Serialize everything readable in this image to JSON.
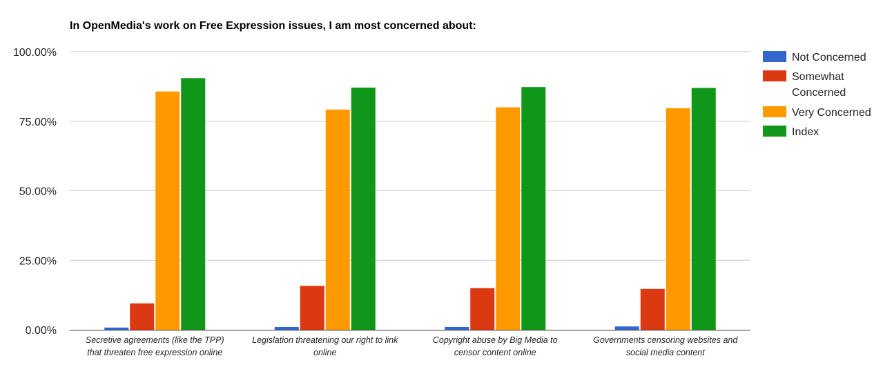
{
  "chart_data": {
    "type": "bar",
    "title": "In OpenMedia's work on Free Expression issues, I am most concerned about:",
    "xlabel": "",
    "ylabel": "",
    "ylim": [
      0,
      100
    ],
    "yticks": [
      "0.00%",
      "25.00%",
      "50.00%",
      "75.00%",
      "100.00%"
    ],
    "ytick_values": [
      0,
      25,
      50,
      75,
      100
    ],
    "grid": true,
    "legend_position": "right",
    "categories": [
      [
        "Secretive agreements (like the TPP)",
        "that threaten free expression online"
      ],
      [
        "Legislation threatening our right to link",
        "online"
      ],
      [
        "Copyright abuse by Big Media to",
        "censor content online"
      ],
      [
        "Governments censoring websites and",
        "social media content"
      ]
    ],
    "series": [
      {
        "name": "Not Concerned",
        "legend_lines": [
          "Not Concerned"
        ],
        "color": "#3366cc",
        "values": [
          0.8,
          1.0,
          1.0,
          1.2
        ]
      },
      {
        "name": "Somewhat Concerned",
        "legend_lines": [
          "Somewhat",
          "Concerned"
        ],
        "color": "#dc3912",
        "values": [
          9.5,
          15.8,
          15.0,
          14.7
        ]
      },
      {
        "name": "Very Concerned",
        "legend_lines": [
          "Very Concerned"
        ],
        "color": "#ff9900",
        "values": [
          85.7,
          79.2,
          80.0,
          79.7
        ]
      },
      {
        "name": "Index",
        "legend_lines": [
          "Index"
        ],
        "color": "#109618",
        "values": [
          90.5,
          87.1,
          87.3,
          87.0
        ]
      }
    ]
  }
}
